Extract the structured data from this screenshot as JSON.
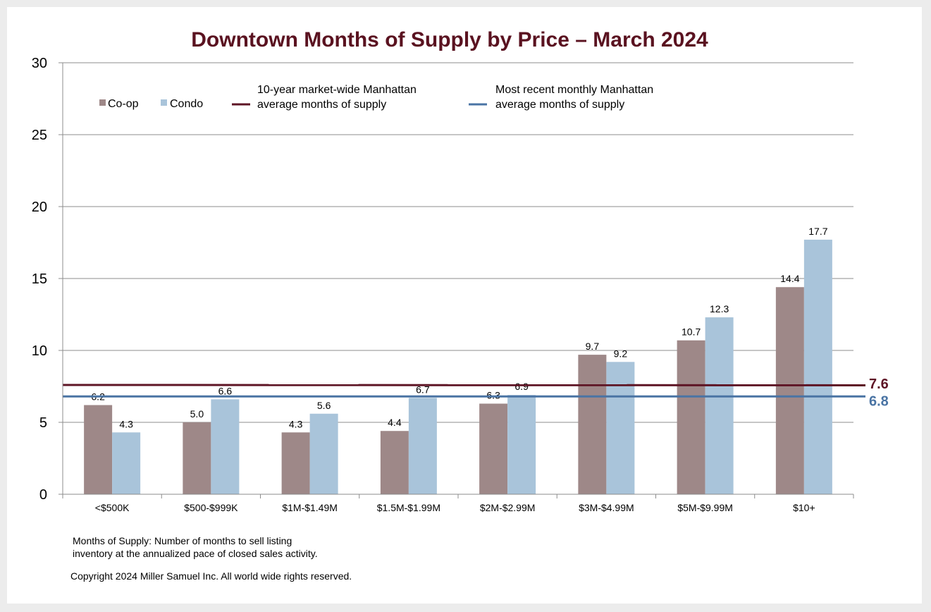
{
  "chart_data": {
    "type": "bar",
    "title": "Downtown Months of Supply by Price – March 2024",
    "xlabel": "",
    "ylabel": "",
    "ylim": [
      0,
      30
    ],
    "yticks": [
      0,
      5,
      10,
      15,
      20,
      25,
      30
    ],
    "grid": true,
    "categories": [
      "<$500K",
      "$500-$999K",
      "$1M-$1.49M",
      "$1.5M-$1.99M",
      "$2M-$2.99M",
      "$3M-$4.99M",
      "$5M-$9.99M",
      "$10+"
    ],
    "series": [
      {
        "name": "Co-op",
        "color": "#9e8888",
        "values": [
          6.2,
          5.0,
          4.3,
          4.4,
          6.3,
          9.7,
          10.7,
          14.4
        ],
        "labels": [
          "6.2",
          "5.0",
          "4.3",
          "4.4",
          "6.3",
          "9.7",
          "10.7",
          "14.4"
        ]
      },
      {
        "name": "Condo",
        "color": "#a9c4da",
        "values": [
          4.3,
          6.6,
          5.6,
          6.7,
          6.9,
          9.2,
          12.3,
          17.7
        ],
        "labels": [
          "4.3",
          "6.6",
          "5.6",
          "6.7",
          "6.9",
          "9.2",
          "12.3",
          "17.7"
        ]
      }
    ],
    "reference_lines": [
      {
        "name": "10-year market-wide Manhattan average months of supply",
        "legend_line1": "10-year market-wide Manhattan",
        "legend_line2": "average months of supply",
        "value": 7.6,
        "label": "7.6",
        "color": "#5e1525"
      },
      {
        "name": "Most recent monthly Manhattan average months of supply",
        "legend_line1": "Most recent monthly Manhattan",
        "legend_line2": "average months of supply",
        "value": 6.8,
        "label": "6.8",
        "color": "#4a74a4"
      }
    ],
    "legend": "top-left"
  },
  "notes": {
    "definition_line1": "Months of Supply: Number of months to sell listing",
    "definition_line2": "inventory at the annualized pace of closed sales activity.",
    "copyright": "Copyright 2024 Miller Samuel Inc.  All world wide rights reserved."
  }
}
